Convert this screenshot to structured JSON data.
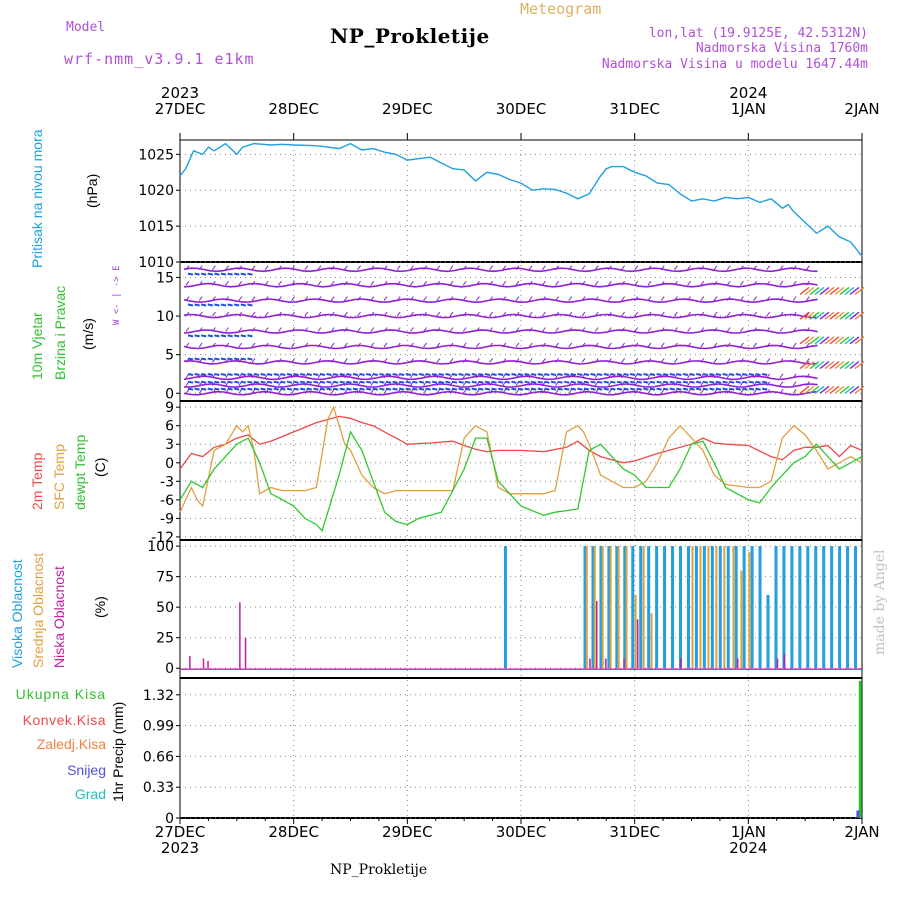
{
  "header": {
    "model_label": "Model",
    "model_name": "wrf-nmm_v3.9.1 e1km",
    "meteogram_label": "Meteogram",
    "title": "NP_Prokletije",
    "lonlat": "lon,lat (19.9125E, 42.5312N)",
    "elevation": "Nadmorska Visina 1760m",
    "model_elevation": "Nadmorska Visina u modelu 1647.44m"
  },
  "footer": {
    "station": "NP_Prokletije"
  },
  "watermark": "made by Angel",
  "axis": {
    "top_years": [
      {
        "label": "2023",
        "at": 0
      },
      {
        "label": "2024",
        "at": 5
      }
    ],
    "bottom_years": [
      {
        "label": "2023",
        "at": 0
      },
      {
        "label": "2024",
        "at": 5
      }
    ],
    "date_ticks": [
      "27DEC",
      "28DEC",
      "29DEC",
      "30DEC",
      "31DEC",
      "1JAN",
      "2JAN"
    ]
  },
  "colors": {
    "pressure": "#20a0e0",
    "temp2m": "#f04848",
    "sfc_temp": "#e0a040",
    "dewpoint": "#30c830",
    "high_cloud": "#20a0e0",
    "mid_cloud": "#e0a040",
    "low_cloud": "#c020a0",
    "total_precip": "#30c030",
    "conv_precip": "#f04848",
    "frozen_precip": "#f08040",
    "snow": "#5050e0",
    "graupel": "#20c0c0",
    "wind_purple": "#9020d0",
    "wind_blue": "#2050e0"
  },
  "panels": {
    "pressure": {
      "labels": [
        "Pritisak na nivou mora"
      ],
      "unit": "(hPa)",
      "ticks": [
        "1010",
        "1015",
        "1020",
        "1025"
      ]
    },
    "wind": {
      "labels": [
        "10m Vjetar",
        "Brzina i Pravac"
      ],
      "unit": "(m/s)",
      "compass": "W  <- | ->  E",
      "ticks": [
        "0",
        "5",
        "10",
        "15"
      ]
    },
    "temperature": {
      "labels": [
        "2m Temp",
        "SFC Temp",
        "dewpt Temp"
      ],
      "unit": "(C)",
      "ticks": [
        "-12",
        "-9",
        "-6",
        "-3",
        "0",
        "3",
        "6",
        "9"
      ]
    },
    "cloud": {
      "labels": [
        "Visoka Oblacnost",
        "Srednja Oblacnost",
        "Niska Oblacnost"
      ],
      "unit": "(%)",
      "ticks": [
        "0",
        "25",
        "50",
        "75",
        "100"
      ]
    },
    "precip": {
      "legend": [
        "Ukupna Kisa",
        "Konvek.Kisa",
        "Zaledj.Kisa",
        "Snijeg",
        "Grad"
      ],
      "unit": "1hr Precip (mm)",
      "ticks": [
        "0",
        "0.33",
        "0.66",
        "0.99",
        "1.32"
      ]
    }
  },
  "chart_data": [
    {
      "type": "line",
      "name": "pressure",
      "ylim": [
        1010,
        1027
      ],
      "x": [
        0,
        0.05,
        0.12,
        0.2,
        0.25,
        0.3,
        0.4,
        0.5,
        0.55,
        0.65,
        0.8,
        0.9,
        1.0,
        1.2,
        1.4,
        1.5,
        1.6,
        1.7,
        1.8,
        1.9,
        2.0,
        2.2,
        2.3,
        2.4,
        2.5,
        2.6,
        2.7,
        2.8,
        2.9,
        3.0,
        3.1,
        3.2,
        3.3,
        3.4,
        3.5,
        3.6,
        3.7,
        3.75,
        3.8,
        3.9,
        4.0,
        4.1,
        4.2,
        4.3,
        4.4,
        4.5,
        4.6,
        4.7,
        4.8,
        4.9,
        5.0,
        5.1,
        5.2,
        5.3,
        5.35,
        5.4,
        5.5,
        5.6,
        5.7,
        5.8,
        5.9,
        6.0
      ],
      "y": [
        1022,
        1023,
        1025.5,
        1025,
        1026,
        1025.5,
        1026.5,
        1025,
        1026,
        1026.5,
        1026.3,
        1026.4,
        1026.3,
        1026.2,
        1025.8,
        1026.5,
        1025.6,
        1025.8,
        1025.3,
        1025.0,
        1024.2,
        1024.6,
        1023.8,
        1023.0,
        1022.8,
        1021.3,
        1022.5,
        1022.2,
        1021.5,
        1021.0,
        1020.0,
        1020.2,
        1020.1,
        1019.6,
        1018.8,
        1019.5,
        1022.0,
        1023.0,
        1023.3,
        1023.3,
        1022.5,
        1022.0,
        1021.0,
        1020.8,
        1019.5,
        1018.5,
        1018.8,
        1018.5,
        1019.0,
        1018.8,
        1019.0,
        1018.3,
        1018.8,
        1017.5,
        1018.0,
        1017.0,
        1015.5,
        1014.0,
        1015.0,
        1013.5,
        1012.8,
        1010.8
      ]
    },
    {
      "type": "scatter",
      "name": "wind barbs",
      "ylim": [
        -1,
        17
      ],
      "rows_purple": [
        0,
        1,
        2,
        4,
        6,
        8,
        10,
        12,
        14,
        16
      ],
      "rows_blue": [
        0.6,
        1.5,
        2.5,
        4.5,
        7.5,
        11.5,
        15.5
      ]
    },
    {
      "type": "line",
      "ylim": [
        -12.5,
        10
      ],
      "series": [
        {
          "name": "2m Temp",
          "x": [
            0,
            0.1,
            0.2,
            0.3,
            0.4,
            0.5,
            0.6,
            0.7,
            0.8,
            1.0,
            1.2,
            1.3,
            1.4,
            1.5,
            1.6,
            1.7,
            1.8,
            1.9,
            2.0,
            2.2,
            2.4,
            2.5,
            2.6,
            2.7,
            2.8,
            3.0,
            3.2,
            3.4,
            3.5,
            3.6,
            3.7,
            3.8,
            3.9,
            4.0,
            4.2,
            4.3,
            4.5,
            4.6,
            4.7,
            4.8,
            5.0,
            5.2,
            5.3,
            5.4,
            5.5,
            5.6,
            5.7,
            5.8,
            5.9,
            6.0
          ],
          "y": [
            -1,
            1.5,
            1.0,
            2.5,
            3.0,
            4.0,
            4.5,
            3.0,
            3.5,
            5.0,
            6.5,
            7.0,
            7.5,
            7.2,
            6.5,
            6.0,
            5.0,
            4.0,
            3.0,
            3.2,
            3.5,
            2.8,
            2.2,
            1.8,
            2.0,
            2.0,
            1.8,
            2.5,
            3.5,
            2.0,
            1.0,
            0.5,
            0.0,
            0.3,
            1.5,
            2.0,
            3.0,
            4.0,
            3.2,
            3.0,
            2.8,
            1.0,
            0.5,
            2.0,
            2.5,
            2.5,
            2.8,
            1.0,
            2.8,
            2.0
          ]
        },
        {
          "name": "SFC Temp",
          "x": [
            0,
            0.1,
            0.15,
            0.2,
            0.3,
            0.4,
            0.5,
            0.55,
            0.6,
            0.65,
            0.7,
            0.8,
            0.9,
            1.0,
            1.1,
            1.2,
            1.3,
            1.35,
            1.45,
            1.5,
            1.6,
            1.7,
            1.8,
            1.9,
            2.0,
            2.2,
            2.4,
            2.5,
            2.6,
            2.7,
            2.8,
            2.9,
            3.0,
            3.2,
            3.3,
            3.4,
            3.5,
            3.55,
            3.6,
            3.7,
            3.8,
            3.9,
            4.0,
            4.1,
            4.2,
            4.3,
            4.4,
            4.5,
            4.55,
            4.6,
            4.7,
            4.8,
            5.0,
            5.1,
            5.2,
            5.3,
            5.4,
            5.5,
            5.6,
            5.7,
            5.8,
            5.9,
            6.0
          ],
          "y": [
            -8,
            -4,
            -6,
            -7,
            2,
            3,
            6,
            5,
            6,
            2,
            -5,
            -4,
            -4.5,
            -4.5,
            -4.5,
            -4,
            7,
            9,
            3,
            2,
            -2,
            -4,
            -5,
            -4.5,
            -4.5,
            -4.5,
            -4.5,
            4,
            6,
            5,
            -4,
            -5,
            -5,
            -5,
            -4.5,
            5,
            6,
            5,
            3,
            -2,
            -3,
            -4,
            -4,
            -3,
            0,
            4,
            6,
            4,
            3,
            2,
            -2,
            -3.5,
            -4,
            -4,
            -3,
            4,
            6,
            4.5,
            2,
            -1,
            0,
            1,
            0
          ]
        },
        {
          "name": "dewpt Temp",
          "x": [
            0,
            0.1,
            0.2,
            0.3,
            0.4,
            0.5,
            0.6,
            0.7,
            0.8,
            0.9,
            1.0,
            1.1,
            1.2,
            1.25,
            1.3,
            1.4,
            1.5,
            1.6,
            1.7,
            1.8,
            1.9,
            2.0,
            2.1,
            2.3,
            2.5,
            2.6,
            2.7,
            2.8,
            3.0,
            3.2,
            3.3,
            3.5,
            3.6,
            3.7,
            3.8,
            3.9,
            4.0,
            4.1,
            4.3,
            4.4,
            4.5,
            4.6,
            4.7,
            4.8,
            5.0,
            5.1,
            5.2,
            5.3,
            5.4,
            5.5,
            5.6,
            5.7,
            5.8,
            5.9,
            6.0
          ],
          "y": [
            -6,
            -3,
            -4,
            -1,
            1,
            3,
            4,
            0,
            -5,
            -6,
            -7,
            -9,
            -10,
            -11,
            -8,
            -2,
            5,
            2,
            -3,
            -8,
            -9.5,
            -10,
            -9,
            -8,
            -1,
            4,
            4,
            -3,
            -7,
            -8.5,
            -8,
            -7.5,
            2,
            3,
            1,
            -1,
            -2,
            -4,
            -4,
            -1,
            3,
            3.5,
            0,
            -4,
            -6,
            -6.5,
            -4,
            -2,
            0,
            1,
            3,
            1,
            -1,
            0,
            1
          ]
        }
      ]
    },
    {
      "type": "bar",
      "name": "cloud cover",
      "ylim": [
        0,
        100
      ],
      "series": [
        {
          "name": "Visoka Oblacnost",
          "x": [
            2.85,
            3.55,
            3.62,
            3.69,
            3.76,
            3.83,
            3.9,
            3.97,
            4.04,
            4.11,
            4.18,
            4.25,
            4.32,
            4.39,
            4.46,
            4.53,
            4.6,
            4.67,
            4.74,
            4.81,
            4.88,
            4.95,
            5.02,
            5.09,
            5.16,
            5.23,
            5.3,
            5.37,
            5.44,
            5.51,
            5.58,
            5.65,
            5.72,
            5.79,
            5.86,
            5.93
          ],
          "values": [
            100,
            100,
            100,
            100,
            100,
            100,
            100,
            100,
            100,
            100,
            100,
            100,
            100,
            100,
            100,
            100,
            100,
            100,
            100,
            100,
            100,
            100,
            100,
            100,
            60,
            100,
            100,
            100,
            100,
            100,
            100,
            100,
            100,
            100,
            100,
            100
          ]
        },
        {
          "name": "Srednja Oblacnost",
          "x": [
            3.57,
            3.64,
            3.71,
            3.78,
            3.85,
            3.92,
            4.0,
            4.07,
            4.14,
            4.5,
            4.57,
            4.64,
            4.71,
            4.78,
            4.86,
            4.93,
            5.0
          ],
          "values": [
            100,
            100,
            100,
            100,
            100,
            100,
            60,
            100,
            45,
            100,
            100,
            100,
            100,
            100,
            100,
            80,
            95
          ]
        },
        {
          "name": "Niska Oblacnost",
          "x": [
            0.08,
            0.2,
            0.24,
            0.52,
            0.57,
            3.6,
            3.66,
            3.74,
            3.9,
            4.02,
            4.4,
            4.9,
            5.25,
            5.31
          ],
          "values": [
            10,
            8,
            6,
            54,
            25,
            8,
            55,
            8,
            8,
            40,
            8,
            8,
            8,
            12
          ]
        }
      ]
    },
    {
      "type": "bar",
      "name": "precipitation",
      "ylim": [
        0,
        1.5
      ],
      "series": [
        {
          "name": "Ukupna Kisa",
          "x": [
            5.98
          ],
          "values": [
            1.47
          ]
        },
        {
          "name": "Snijeg",
          "x": [
            5.96
          ],
          "values": [
            0.08
          ]
        }
      ]
    }
  ]
}
